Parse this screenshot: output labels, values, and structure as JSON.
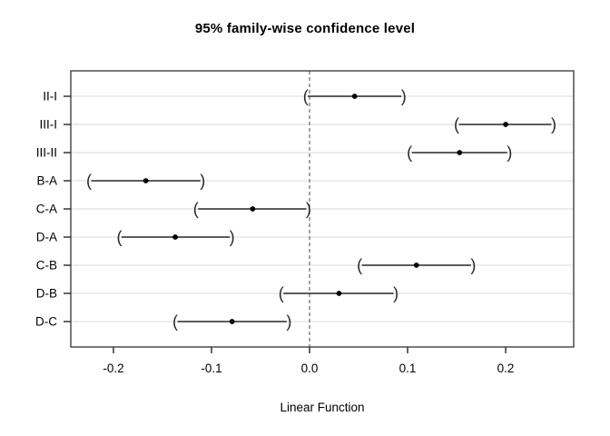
{
  "chart_data": {
    "type": "ci_interval",
    "title": "95% family-wise confidence level",
    "xlabel": "Linear Function",
    "xlim": [
      -0.2435,
      0.2694
    ],
    "x_ticks": [
      -0.2,
      -0.1,
      0.0,
      0.1,
      0.2
    ],
    "x_tick_labels": [
      "-0.2",
      "-0.1",
      "0.0",
      "0.1",
      "0.2"
    ],
    "reference_line_x": 0.0,
    "grid": "horizontal-gridlines-per-row",
    "legend": "none",
    "endpoint_glyphs": {
      "lower": "(",
      "upper": ")"
    },
    "comparisons": [
      {
        "label": "II-I",
        "lower": -0.004,
        "estimate": 0.046,
        "upper": 0.096
      },
      {
        "label": "III-I",
        "lower": 0.15,
        "estimate": 0.2,
        "upper": 0.249
      },
      {
        "label": "III-II",
        "lower": 0.102,
        "estimate": 0.153,
        "upper": 0.204
      },
      {
        "label": "B-A",
        "lower": -0.225,
        "estimate": -0.167,
        "upper": -0.109
      },
      {
        "label": "C-A",
        "lower": -0.116,
        "estimate": -0.058,
        "upper": -0.001
      },
      {
        "label": "D-A",
        "lower": -0.194,
        "estimate": -0.137,
        "upper": -0.079
      },
      {
        "label": "C-B",
        "lower": 0.051,
        "estimate": 0.109,
        "upper": 0.167
      },
      {
        "label": "D-B",
        "lower": -0.029,
        "estimate": 0.03,
        "upper": 0.088
      },
      {
        "label": "D-C",
        "lower": -0.137,
        "estimate": -0.079,
        "upper": -0.021
      }
    ],
    "colors": {
      "interval": "#262626",
      "point": "#000000",
      "gridline": "#d9d9d9",
      "reference_line": "#7f7f7f",
      "axis": "#000000",
      "box": "#333333",
      "background": "#ffffff",
      "text": "#000000"
    }
  }
}
